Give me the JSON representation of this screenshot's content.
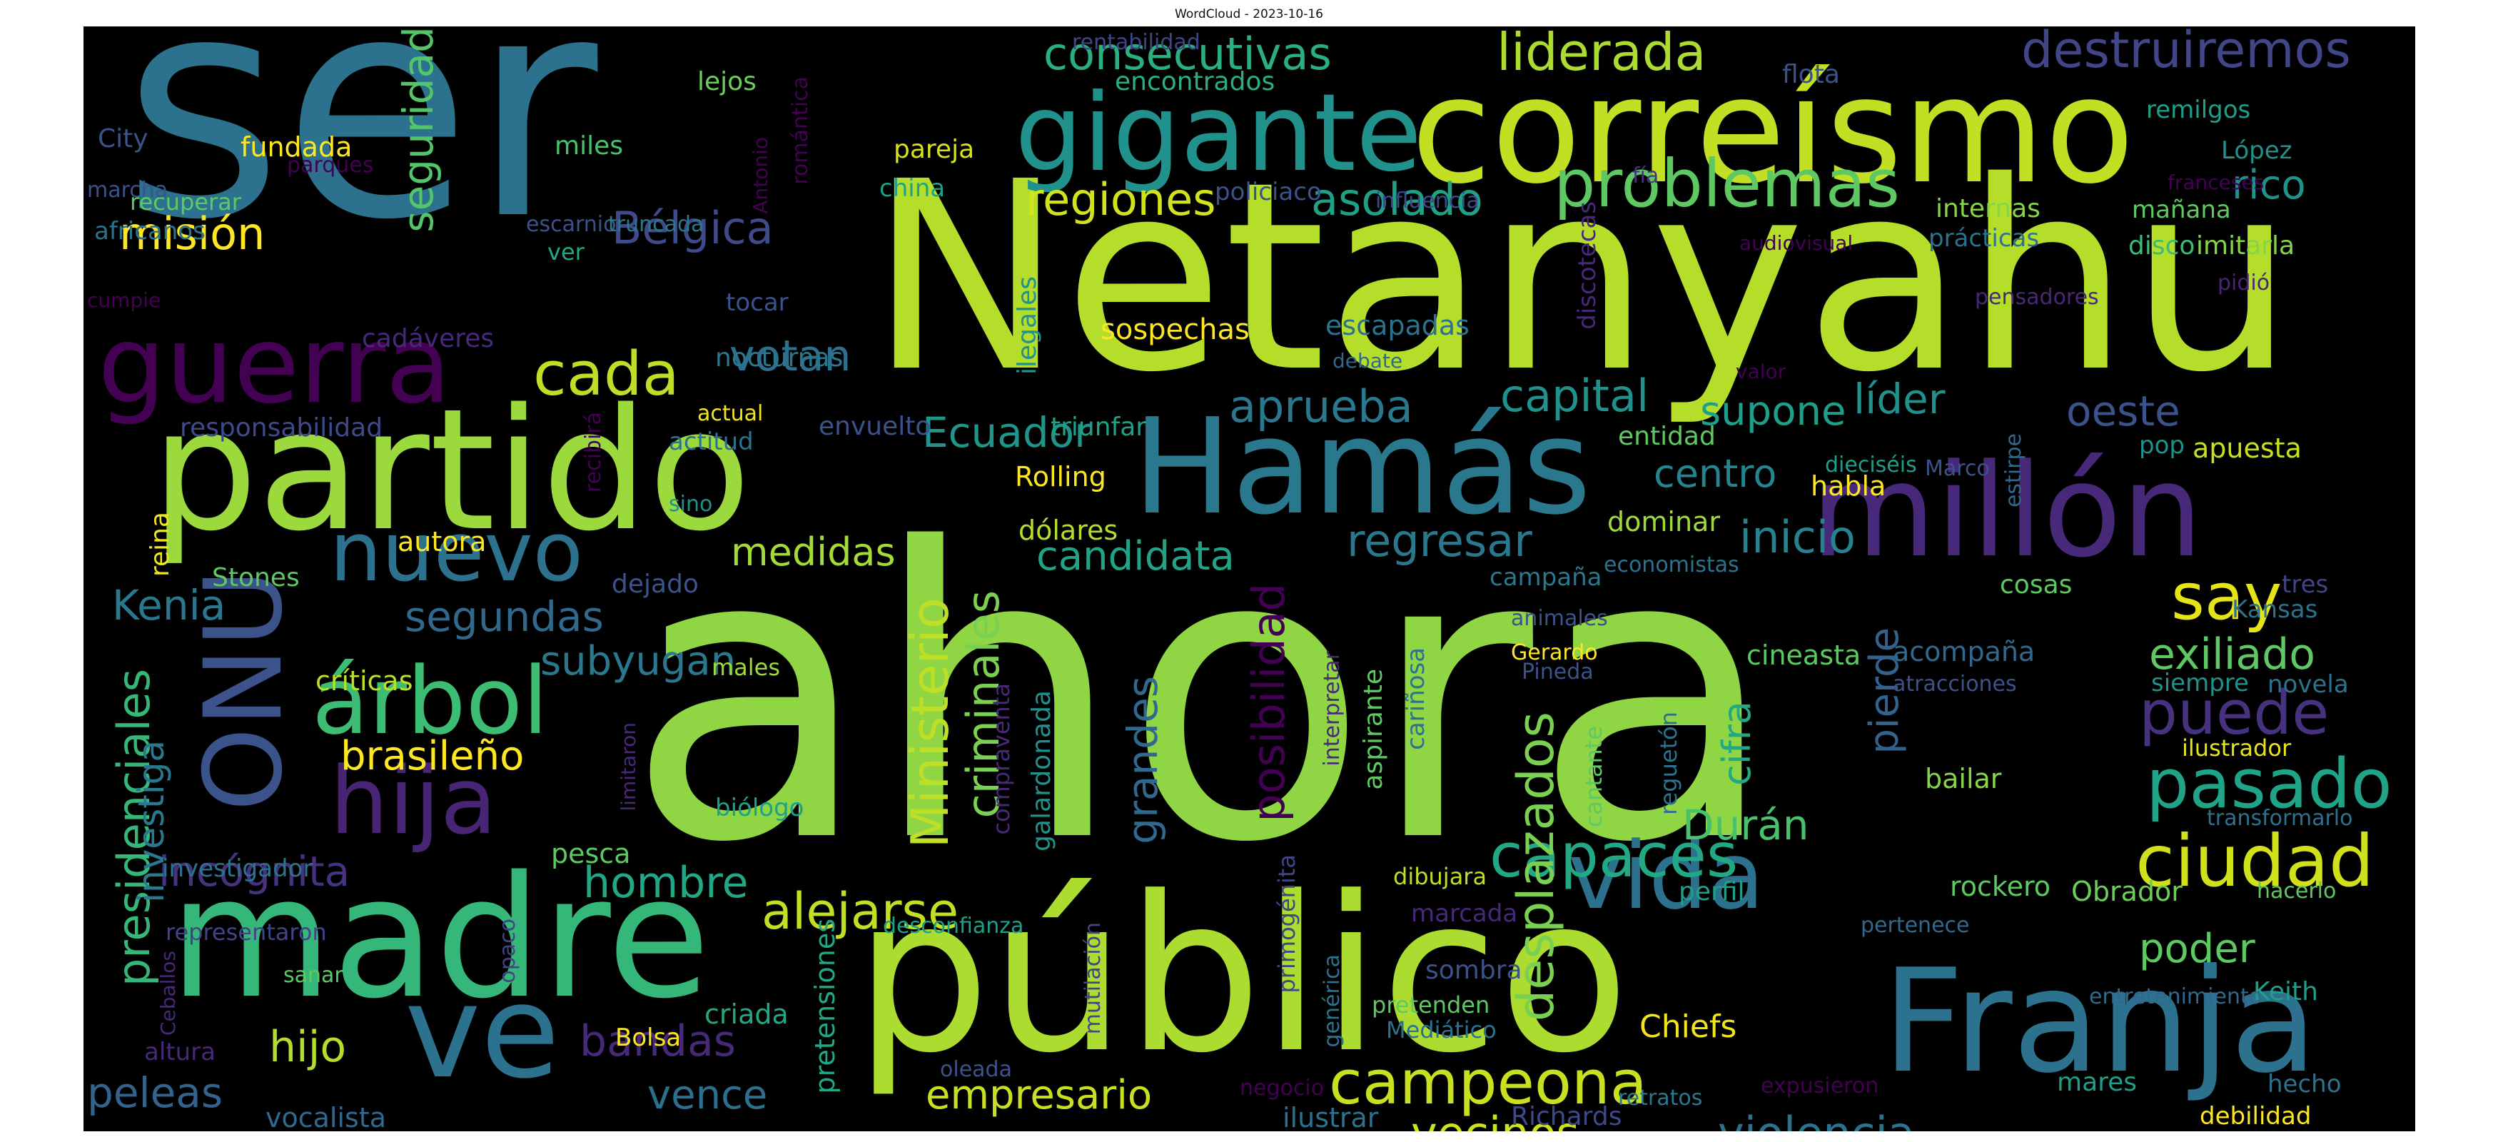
{
  "figure": {
    "title": "WordCloud - 2023-10-16",
    "background": "#000000",
    "colormap": "viridis"
  },
  "words": [
    {
      "text": "ahora",
      "color": "#8fd544"
    },
    {
      "text": "Netanyahu",
      "color": "#b5de2b"
    },
    {
      "text": "ser",
      "color": "#2c728e"
    },
    {
      "text": "público",
      "color": "#addc30"
    },
    {
      "text": "partido",
      "color": "#9bd93c"
    },
    {
      "text": "correísmo",
      "color": "#c2df23"
    },
    {
      "text": "madre",
      "color": "#35b779"
    },
    {
      "text": "Hamás",
      "color": "#2a788e"
    },
    {
      "text": "millón",
      "color": "#482878"
    },
    {
      "text": "Franja",
      "color": "#2c728e"
    },
    {
      "text": "gigante",
      "color": "#21918c"
    },
    {
      "text": "guerra",
      "color": "#440154"
    },
    {
      "text": "ve",
      "color": "#2c728e"
    },
    {
      "text": "ONU",
      "color": "#3b528b"
    },
    {
      "text": "nuevo",
      "color": "#2c728e"
    },
    {
      "text": "vida",
      "color": "#2c728e"
    },
    {
      "text": "hija",
      "color": "#482475"
    },
    {
      "text": "árbol",
      "color": "#3dbc74"
    },
    {
      "text": "campeona",
      "color": "#c8e020"
    },
    {
      "text": "capaces",
      "color": "#22a884"
    },
    {
      "text": "ciudad",
      "color": "#d0e11c"
    },
    {
      "text": "pasado",
      "color": "#20a386"
    },
    {
      "text": "puede",
      "color": "#46327e"
    },
    {
      "text": "problemas",
      "color": "#5ec962"
    },
    {
      "text": "destruiremos",
      "color": "#404688"
    },
    {
      "text": "cada",
      "color": "#bddf26"
    },
    {
      "text": "say",
      "color": "#e5e419"
    },
    {
      "text": "desplazados",
      "color": "#7ad151"
    },
    {
      "text": "posibilidad",
      "color": "#440154"
    },
    {
      "text": "alejarse",
      "color": "#c2df23"
    },
    {
      "text": "Ministerio",
      "color": "#bddf26"
    },
    {
      "text": "criminales",
      "color": "#7ad151"
    },
    {
      "text": "grandes",
      "color": "#31688e"
    },
    {
      "text": "presidenciales",
      "color": "#35b779"
    },
    {
      "text": "liderada",
      "color": "#addc30"
    },
    {
      "text": "consecutivas",
      "color": "#2ab07f"
    },
    {
      "text": "asolado",
      "color": "#1fa188"
    },
    {
      "text": "regiones",
      "color": "#d2e21b"
    },
    {
      "text": "seguridad",
      "color": "#54c568"
    },
    {
      "text": "misión",
      "color": "#fde725"
    },
    {
      "text": "Bélgica",
      "color": "#3e4a89"
    },
    {
      "text": "votan",
      "color": "#2d708e"
    },
    {
      "text": "aprueba",
      "color": "#2a788e"
    },
    {
      "text": "capital",
      "color": "#21918c"
    },
    {
      "text": "supone",
      "color": "#1f9e89"
    },
    {
      "text": "líder",
      "color": "#21918c"
    },
    {
      "text": "oeste",
      "color": "#3b528b"
    },
    {
      "text": "rico",
      "color": "#21918c"
    },
    {
      "text": "Ecuador",
      "color": "#1f968b"
    },
    {
      "text": "centro",
      "color": "#25848e"
    },
    {
      "text": "inicio",
      "color": "#26828e"
    },
    {
      "text": "regresar",
      "color": "#2a788e"
    },
    {
      "text": "candidata",
      "color": "#20a386"
    },
    {
      "text": "medidas",
      "color": "#a5db36"
    },
    {
      "text": "Kenia",
      "color": "#2a788e"
    },
    {
      "text": "segundas",
      "color": "#31688e"
    },
    {
      "text": "subyugan",
      "color": "#2a788e"
    },
    {
      "text": "exiliado",
      "color": "#5ec962"
    },
    {
      "text": "cifra",
      "color": "#22a884"
    },
    {
      "text": "pierde",
      "color": "#33638d"
    },
    {
      "text": "Durán",
      "color": "#4ac16d"
    },
    {
      "text": "hombre",
      "color": "#22a884"
    },
    {
      "text": "incógnita",
      "color": "#46327e"
    },
    {
      "text": "brasileño",
      "color": "#fde725"
    },
    {
      "text": "investiga",
      "color": "#2a788e"
    },
    {
      "text": "hijo",
      "color": "#b5de2b"
    },
    {
      "text": "bandas",
      "color": "#482878"
    },
    {
      "text": "peleas",
      "color": "#33638d"
    },
    {
      "text": "vence",
      "color": "#2d708e"
    },
    {
      "text": "empresario",
      "color": "#c8e020"
    },
    {
      "text": "vecinos",
      "color": "#cde11d"
    },
    {
      "text": "violencia",
      "color": "#2c728e"
    },
    {
      "text": "poder",
      "color": "#5ec962"
    },
    {
      "text": "Chiefs",
      "color": "#f1e51d"
    },
    {
      "text": "sospechas",
      "color": "#fde725"
    },
    {
      "text": "escapadas",
      "color": "#2c728e"
    },
    {
      "text": "nocturnas",
      "color": "#2a788e"
    },
    {
      "text": "fundada",
      "color": "#fde725"
    },
    {
      "text": "miles",
      "color": "#4ac16d"
    },
    {
      "text": "City",
      "color": "#3b528b"
    },
    {
      "text": "africanos",
      "color": "#2c728e"
    },
    {
      "text": "lejos",
      "color": "#6ccd5a"
    },
    {
      "text": "pareja",
      "color": "#d8e219"
    },
    {
      "text": "china",
      "color": "#1fa188"
    },
    {
      "text": "encontrados",
      "color": "#2ab07f"
    },
    {
      "text": "rentabilidad",
      "color": "#414487"
    },
    {
      "text": "flota",
      "color": "#3b528b"
    },
    {
      "text": "remilgos",
      "color": "#1f9e89"
    },
    {
      "text": "López",
      "color": "#21918c"
    },
    {
      "text": "franceses",
      "color": "#440154"
    },
    {
      "text": "mañana",
      "color": "#5ec962"
    },
    {
      "text": "internas",
      "color": "#86d549"
    },
    {
      "text": "prácticas",
      "color": "#2c728e"
    },
    {
      "text": "disco",
      "color": "#3bbb75"
    },
    {
      "text": "imitarla",
      "color": "#86d549"
    },
    {
      "text": "policiaco",
      "color": "#3b528b"
    },
    {
      "text": "influencia",
      "color": "#3e4989"
    },
    {
      "text": "fía",
      "color": "#46327e"
    },
    {
      "text": "audiovisual",
      "color": "#440154"
    },
    {
      "text": "pidió",
      "color": "#482475"
    },
    {
      "text": "pensadores",
      "color": "#482878"
    },
    {
      "text": "discotecas",
      "color": "#482878"
    },
    {
      "text": "valor",
      "color": "#440154"
    },
    {
      "text": "debate",
      "color": "#31688e"
    },
    {
      "text": "ilegales",
      "color": "#21918c"
    },
    {
      "text": "triunfar",
      "color": "#1fa188"
    },
    {
      "text": "envuelto",
      "color": "#3b528b"
    },
    {
      "text": "actual",
      "color": "#f1e51d"
    },
    {
      "text": "actitud",
      "color": "#2c728e"
    },
    {
      "text": "responsabilidad",
      "color": "#3e4a89"
    },
    {
      "text": "cadáveres",
      "color": "#482878"
    },
    {
      "text": "tocar",
      "color": "#3b528b"
    },
    {
      "text": "cumpie",
      "color": "#440154"
    },
    {
      "text": "recuperar",
      "color": "#5ec962"
    },
    {
      "text": "marcha",
      "color": "#3b528b"
    },
    {
      "text": "parques",
      "color": "#440154"
    },
    {
      "text": "Antonio",
      "color": "#440154"
    },
    {
      "text": "romántica",
      "color": "#440154"
    },
    {
      "text": "escarnio",
      "color": "#3b528b"
    },
    {
      "text": "truncada",
      "color": "#2a788e"
    },
    {
      "text": "ver",
      "color": "#22a884"
    },
    {
      "text": "recibirá",
      "color": "#440154"
    },
    {
      "text": "sino",
      "color": "#21918c"
    },
    {
      "text": "autora",
      "color": "#fde725"
    },
    {
      "text": "Stones",
      "color": "#5ec962"
    },
    {
      "text": "reina",
      "color": "#f1e51d"
    },
    {
      "text": "dejado",
      "color": "#3b528b"
    },
    {
      "text": "críticas",
      "color": "#bddf26"
    },
    {
      "text": "males",
      "color": "#a0da39"
    },
    {
      "text": "limitaron",
      "color": "#482878"
    },
    {
      "text": "biólogo",
      "color": "#1fa188"
    },
    {
      "text": "pesca",
      "color": "#5ec962"
    },
    {
      "text": "investigador",
      "color": "#2c728e"
    },
    {
      "text": "representaron",
      "color": "#414487"
    },
    {
      "text": "sanar",
      "color": "#5ec962"
    },
    {
      "text": "Ceballos",
      "color": "#482878"
    },
    {
      "text": "opaco",
      "color": "#414487"
    },
    {
      "text": "altura",
      "color": "#482878"
    },
    {
      "text": "vocalista",
      "color": "#31688e"
    },
    {
      "text": "criada",
      "color": "#22a884"
    },
    {
      "text": "Bolsa",
      "color": "#fde725"
    },
    {
      "text": "pretensiones",
      "color": "#22a884"
    },
    {
      "text": "desconfianza",
      "color": "#1f9e89"
    },
    {
      "text": "galardonada",
      "color": "#21918c"
    },
    {
      "text": "compraventa",
      "color": "#482878"
    },
    {
      "text": "mutilación",
      "color": "#414487"
    },
    {
      "text": "oleada",
      "color": "#3b528b"
    },
    {
      "text": "primogénita",
      "color": "#414487"
    },
    {
      "text": "genérica",
      "color": "#2c728e"
    },
    {
      "text": "negocio",
      "color": "#440154"
    },
    {
      "text": "ilustrar",
      "color": "#2c728e"
    },
    {
      "text": "Richards",
      "color": "#3e4989"
    },
    {
      "text": "retratos",
      "color": "#2a788e"
    },
    {
      "text": "expusieron",
      "color": "#440154"
    },
    {
      "text": "mares",
      "color": "#1f9e89"
    },
    {
      "text": "debilidad",
      "color": "#fde725"
    },
    {
      "text": "hecho",
      "color": "#2c728e"
    },
    {
      "text": "Keith",
      "color": "#1f9e89"
    },
    {
      "text": "entretenimiento",
      "color": "#31688e"
    },
    {
      "text": "transformarlo",
      "color": "#2c728e"
    },
    {
      "text": "hacerlo",
      "color": "#5ec962"
    },
    {
      "text": "Obrador",
      "color": "#6ccd5a"
    },
    {
      "text": "rockero",
      "color": "#5ec962"
    },
    {
      "text": "pertenece",
      "color": "#31688e"
    },
    {
      "text": "perfil",
      "color": "#1f9e89"
    },
    {
      "text": "bailar",
      "color": "#86d549"
    },
    {
      "text": "ilustrador",
      "color": "#e5e419"
    },
    {
      "text": "novela",
      "color": "#2c728e"
    },
    {
      "text": "siempre",
      "color": "#21918c"
    },
    {
      "text": "atracciones",
      "color": "#3b528b"
    },
    {
      "text": "acompaña",
      "color": "#31688e"
    },
    {
      "text": "cineasta",
      "color": "#5ec962"
    },
    {
      "text": "Kansas",
      "color": "#2c728e"
    },
    {
      "text": "tres",
      "color": "#414487"
    },
    {
      "text": "cosas",
      "color": "#5ec962"
    },
    {
      "text": "economistas",
      "color": "#2c728e"
    },
    {
      "text": "campaña",
      "color": "#2a788e"
    },
    {
      "text": "animales",
      "color": "#3b528b"
    },
    {
      "text": "Gerardo",
      "color": "#fde725"
    },
    {
      "text": "Pineda",
      "color": "#3b528b"
    },
    {
      "text": "reguetón",
      "color": "#2c728e"
    },
    {
      "text": "cantante",
      "color": "#5ec962"
    },
    {
      "text": "cariñosa",
      "color": "#2c728e"
    },
    {
      "text": "aspirante",
      "color": "#5ec962"
    },
    {
      "text": "interpretar",
      "color": "#482878"
    },
    {
      "text": "dibujara",
      "color": "#bddf26"
    },
    {
      "text": "marcada",
      "color": "#482878"
    },
    {
      "text": "sombra",
      "color": "#3b528b"
    },
    {
      "text": "pretenden",
      "color": "#5ec962"
    },
    {
      "text": "Mediático",
      "color": "#2c728e"
    },
    {
      "text": "dominar",
      "color": "#a0da39"
    },
    {
      "text": "habla",
      "color": "#fde725"
    },
    {
      "text": "entidad",
      "color": "#5ec962"
    },
    {
      "text": "dieciséis",
      "color": "#1f9e89"
    },
    {
      "text": "Marco",
      "color": "#3b528b"
    },
    {
      "text": "estirpe",
      "color": "#31688e"
    },
    {
      "text": "pop",
      "color": "#21918c"
    },
    {
      "text": "apuesta",
      "color": "#c8e020"
    },
    {
      "text": "Rolling",
      "color": "#fde725"
    },
    {
      "text": "dólares",
      "color": "#b5de2b"
    }
  ]
}
